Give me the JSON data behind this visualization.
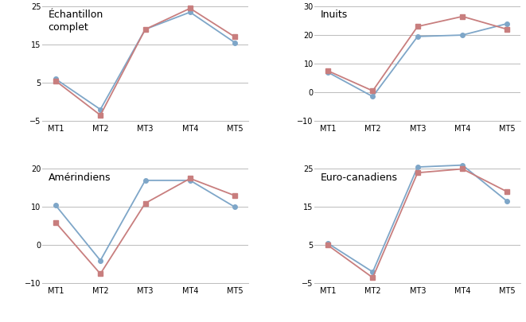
{
  "subplots": [
    {
      "title": "Échantillon\ncomplet",
      "blue": [
        6,
        -2,
        19,
        23.5,
        15.5
      ],
      "red": [
        5.5,
        -3.5,
        19,
        24.5,
        17
      ],
      "ylim": [
        -5,
        25
      ],
      "yticks": [
        -5,
        5,
        15,
        25
      ]
    },
    {
      "title": "Inuits",
      "blue": [
        7,
        -1.5,
        19.5,
        20,
        24
      ],
      "red": [
        7.5,
        0.5,
        23,
        26.5,
        22
      ],
      "ylim": [
        -10,
        30
      ],
      "yticks": [
        -10,
        0,
        10,
        20,
        30
      ]
    },
    {
      "title": "Amérindiens",
      "blue": [
        10.5,
        -4,
        17,
        17,
        10
      ],
      "red": [
        6,
        -7.5,
        11,
        17.5,
        13
      ],
      "ylim": [
        -10,
        20
      ],
      "yticks": [
        -10,
        0,
        10,
        20
      ]
    },
    {
      "title": "Euro-canadiens",
      "blue": [
        5.5,
        -2,
        25.5,
        26,
        16.5
      ],
      "red": [
        5,
        -3.5,
        24,
        25,
        19
      ],
      "ylim": [
        -5,
        25
      ],
      "yticks": [
        -5,
        5,
        15,
        25
      ]
    }
  ],
  "categories": [
    "MT1",
    "MT2",
    "MT3",
    "MT4",
    "MT5"
  ],
  "blue_color": "#7EA6C8",
  "red_color": "#C87E7E",
  "blue_marker": "o",
  "red_marker": "s",
  "marker_size": 4,
  "line_width": 1.3,
  "bg_color": "#FFFFFF",
  "grid_color": "#BBBBBB",
  "title_fontsize": 9,
  "tick_fontsize": 7
}
